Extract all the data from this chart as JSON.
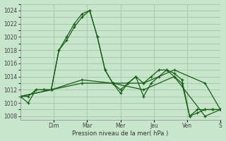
{
  "bg_color": "#c8e6cc",
  "grid_color": "#a0c8a0",
  "line_color": "#1a5e1a",
  "xlabel": "Pression niveau de la mer( hPa )",
  "ylim": [
    1007.5,
    1025
  ],
  "xlim": [
    0,
    13
  ],
  "x_day_labels": [
    "Dim",
    "Mar",
    "Mer",
    "Jeu",
    "Ven",
    "S"
  ],
  "x_day_positions": [
    2.17,
    4.33,
    6.5,
    8.67,
    10.83,
    13
  ],
  "series1_x": [
    0,
    0.5,
    1,
    1.5,
    2,
    2.5,
    3,
    3.5,
    4,
    4.5,
    5,
    5.5,
    6,
    6.5,
    7,
    7.5,
    8,
    8.5,
    9,
    9.5,
    10,
    10.5,
    11,
    11.5,
    12,
    12.5,
    13
  ],
  "series1_y": [
    1011,
    1010,
    1012,
    1012,
    1012,
    1018,
    1019.5,
    1021.5,
    1023,
    1024,
    1020,
    1015,
    1013,
    1011.5,
    1013,
    1014,
    1011,
    1013,
    1014,
    1015,
    1014.5,
    1013.5,
    1008,
    1008.5,
    1009,
    1009,
    1009
  ],
  "series2_x": [
    0,
    0.5,
    1,
    1.5,
    2,
    2.5,
    3,
    3.5,
    4,
    4.5,
    5,
    5.5,
    6,
    6.5,
    7,
    7.5,
    8,
    8.5,
    9,
    9.5,
    10,
    10.5,
    11,
    11.5,
    12,
    12.5,
    13
  ],
  "series2_y": [
    1011,
    1011,
    1012,
    1012,
    1012,
    1018,
    1020,
    1022,
    1023.5,
    1024,
    1020,
    1015,
    1013,
    1012,
    1013,
    1014,
    1013,
    1014,
    1015,
    1015,
    1014,
    1013,
    1008,
    1009,
    1009,
    1009,
    1009
  ],
  "series3_x": [
    0,
    2,
    4,
    6,
    8,
    10,
    12,
    13
  ],
  "series3_y": [
    1011,
    1012,
    1013,
    1013,
    1012,
    1014,
    1008,
    1009
  ],
  "series4_x": [
    0,
    2,
    4,
    6,
    8,
    10,
    12,
    13
  ],
  "series4_y": [
    1011,
    1012,
    1013.5,
    1013,
    1013,
    1015,
    1013,
    1009
  ],
  "yticks": [
    1008,
    1010,
    1012,
    1014,
    1016,
    1018,
    1020,
    1022,
    1024
  ]
}
